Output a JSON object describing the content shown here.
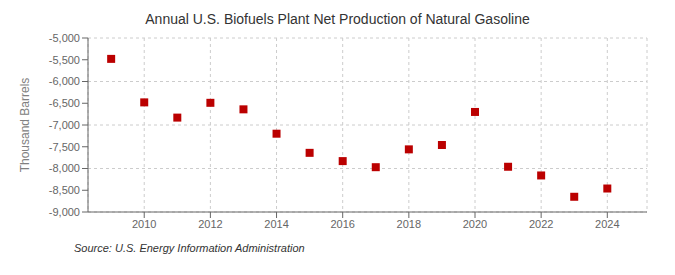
{
  "chart_data": {
    "type": "scatter",
    "title": "Annual U.S. Biofuels Plant Net Production of Natural Gasoline",
    "ylabel": "Thousand Barrels",
    "annotations": [
      "Source: U.S. Energy Information Administration"
    ],
    "x": [
      2009,
      2010,
      2011,
      2012,
      2013,
      2014,
      2015,
      2016,
      2017,
      2018,
      2019,
      2020,
      2021,
      2022,
      2023,
      2024
    ],
    "values": [
      -5480,
      -6480,
      -6830,
      -6490,
      -6640,
      -7200,
      -7640,
      -7830,
      -7970,
      -7560,
      -7460,
      -6700,
      -7960,
      -8160,
      -8650,
      -8460
    ],
    "color": "#bb0000",
    "marker": "square",
    "grid": true,
    "xlim": [
      2008.3,
      2025.2
    ],
    "xticks": [
      2010,
      2012,
      2014,
      2016,
      2018,
      2020,
      2022,
      2024
    ],
    "ylim": [
      -9000,
      -5000
    ],
    "yticks": [
      {
        "value": -9000,
        "label": "-9,000"
      },
      {
        "value": -8500,
        "label": "-8,500"
      },
      {
        "value": -8000,
        "label": "-8,000"
      },
      {
        "value": -7500,
        "label": "-7,500"
      },
      {
        "value": -7000,
        "label": "-7,000"
      },
      {
        "value": -6500,
        "label": "-6,500"
      },
      {
        "value": -6000,
        "label": "-6,000"
      },
      {
        "value": -5500,
        "label": "-5,500"
      },
      {
        "value": -5000,
        "label": "-5,000"
      }
    ]
  }
}
